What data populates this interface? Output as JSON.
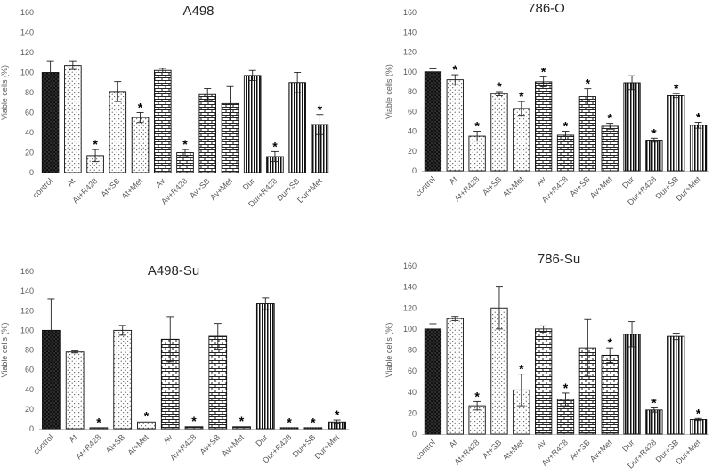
{
  "chart_data": [
    {
      "type": "bar",
      "title": "A498",
      "ylabel": "Viable cells (%)",
      "xlabel": "",
      "ylim": [
        0,
        160
      ],
      "yticks": [
        0,
        20,
        40,
        60,
        80,
        100,
        120,
        140,
        160
      ],
      "categories": [
        "control",
        "At",
        "At+R428",
        "At+SB",
        "At+Met",
        "Av",
        "Av+R428",
        "Av+SB",
        "Av+Met",
        "Dur",
        "Dur+R428",
        "Dur+SB",
        "Dur+Met"
      ],
      "values": [
        100,
        107,
        17,
        81,
        55,
        102,
        20,
        78,
        69,
        97,
        16,
        90,
        48
      ],
      "errors": [
        11,
        4,
        6,
        10,
        5,
        2,
        3,
        6,
        17,
        5,
        5,
        10,
        10
      ],
      "significant": [
        false,
        false,
        true,
        false,
        true,
        false,
        true,
        false,
        false,
        false,
        true,
        false,
        true
      ],
      "significance_marker": "*"
    },
    {
      "type": "bar",
      "title": "786-O",
      "ylabel": "Viable cells (%)",
      "xlabel": "",
      "ylim": [
        0,
        160
      ],
      "yticks": [
        0,
        20,
        40,
        60,
        80,
        100,
        120,
        140,
        160
      ],
      "categories": [
        "control",
        "At",
        "At+R428",
        "At+SB",
        "At+Met",
        "Av",
        "Av+R428",
        "Av+SB",
        "Av+Met",
        "Dur",
        "Dur+R428",
        "Dur+SB",
        "Dur+Met"
      ],
      "values": [
        100,
        92,
        35,
        78,
        63,
        90,
        36,
        75,
        45,
        89,
        31,
        76,
        46
      ],
      "errors": [
        3,
        5,
        5,
        2,
        7,
        5,
        4,
        8,
        3,
        7,
        2,
        2,
        3
      ],
      "significant": [
        false,
        true,
        true,
        true,
        true,
        true,
        true,
        true,
        true,
        false,
        true,
        true,
        true
      ],
      "significance_marker": "*"
    },
    {
      "type": "bar",
      "title": "A498-Su",
      "ylabel": "Viable cells (%)",
      "xlabel": "",
      "ylim": [
        0,
        160
      ],
      "yticks": [
        0,
        20,
        40,
        60,
        80,
        100,
        120,
        140,
        160
      ],
      "categories": [
        "control",
        "At",
        "At+R428",
        "At+SB",
        "At+Met",
        "Av",
        "Av+R428",
        "Av+SB",
        "Av+Met",
        "Dur",
        "Dur+R428",
        "Dur+SB",
        "Dur+Met"
      ],
      "values": [
        100,
        78,
        1,
        100,
        7,
        91,
        2,
        94,
        2,
        127,
        1,
        1,
        7
      ],
      "errors": [
        32,
        1,
        0.5,
        5,
        0.5,
        23,
        0.5,
        13,
        0.5,
        6,
        0.5,
        0.5,
        2
      ],
      "significant": [
        false,
        false,
        true,
        false,
        true,
        false,
        true,
        false,
        true,
        false,
        true,
        true,
        true
      ],
      "significance_marker": "*"
    },
    {
      "type": "bar",
      "title": "786-Su",
      "ylabel": "Viable cells (%)",
      "xlabel": "",
      "ylim": [
        0,
        160
      ],
      "yticks": [
        0,
        20,
        40,
        60,
        80,
        100,
        120,
        140,
        160
      ],
      "categories": [
        "control",
        "At",
        "At+R428",
        "At+SB",
        "At+Met",
        "Av",
        "Av+R428",
        "Av+SB",
        "Av+Met",
        "Dur",
        "Dur+R428",
        "Dur+SB",
        "Dur+Met"
      ],
      "values": [
        100,
        110,
        27,
        120,
        42,
        100,
        33,
        82,
        75,
        95,
        23,
        93,
        14
      ],
      "errors": [
        5,
        2,
        4,
        20,
        15,
        3,
        6,
        27,
        7,
        12,
        2,
        3,
        1
      ],
      "significant": [
        false,
        false,
        true,
        false,
        true,
        false,
        true,
        false,
        true,
        false,
        true,
        false,
        true
      ],
      "significance_marker": "*"
    }
  ]
}
